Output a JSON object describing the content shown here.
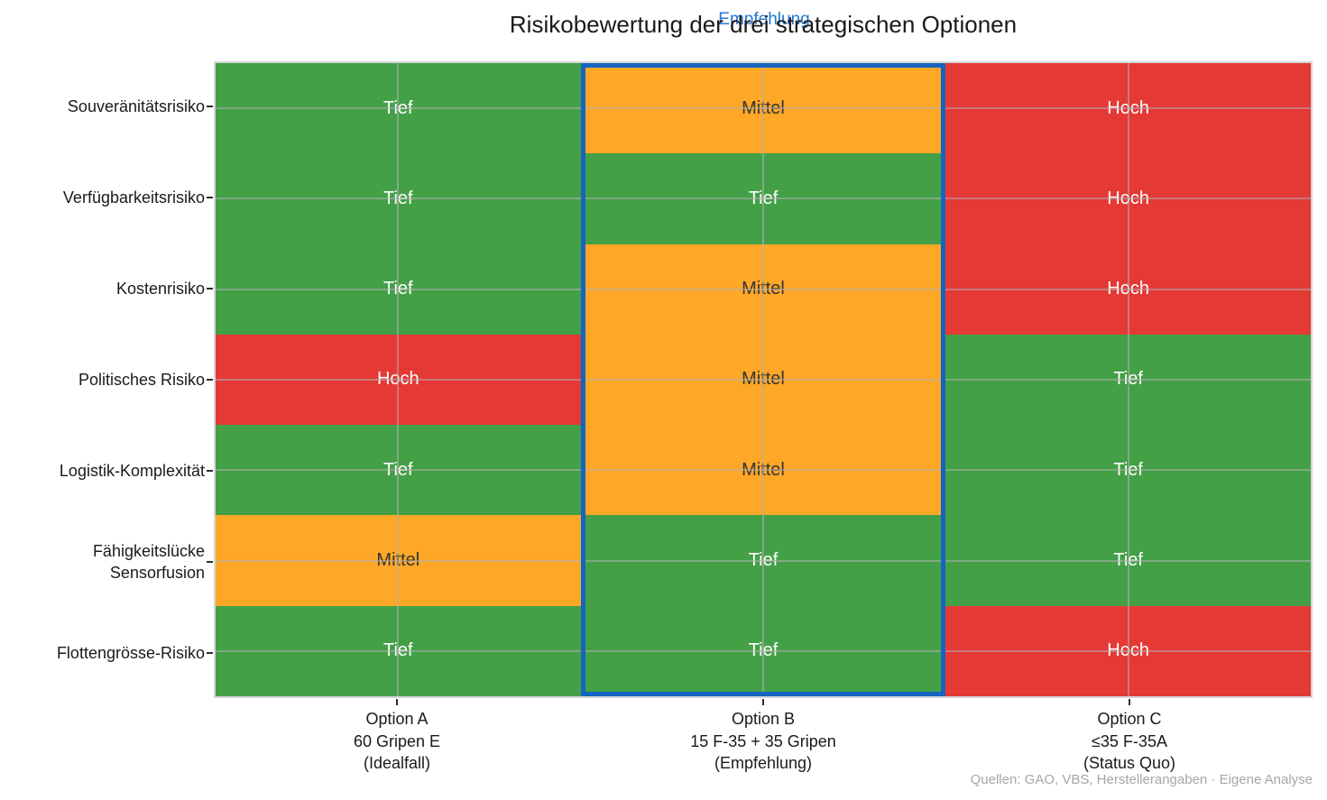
{
  "title": "Risikobewertung der drei strategischen Optionen",
  "annotation": {
    "label": "Empfehlung",
    "color": "#2478d2"
  },
  "source": "Quellen: GAO, VBS, Herstellerangaben · Eigene Analyse",
  "chart_data": {
    "type": "heatmap",
    "rows": [
      "Souveränitätsrisiko",
      "Verfügbarkeitsrisiko",
      "Kostenrisiko",
      "Politisches Risiko",
      "Logistik-Komplexität",
      "Fähigkeitslücke\nSensorfusion",
      "Flottengrösse-Risiko"
    ],
    "columns": [
      [
        "Option A",
        "60 Gripen E",
        "(Idealfall)"
      ],
      [
        "Option B",
        "15 F-35 + 35 Gripen",
        "(Empfehlung)"
      ],
      [
        "Option C",
        "≤35 F-35A",
        "(Status Quo)"
      ]
    ],
    "cells": [
      [
        "Tief",
        "Mittel",
        "Hoch"
      ],
      [
        "Tief",
        "Tief",
        "Hoch"
      ],
      [
        "Tief",
        "Mittel",
        "Hoch"
      ],
      [
        "Hoch",
        "Mittel",
        "Tief"
      ],
      [
        "Tief",
        "Mittel",
        "Tief"
      ],
      [
        "Mittel",
        "Tief",
        "Tief"
      ],
      [
        "Tief",
        "Tief",
        "Hoch"
      ]
    ],
    "value_colors": {
      "Tief": "#43A047",
      "Mittel": "#FFA726",
      "Hoch": "#E53935"
    },
    "value_text_colors": {
      "Tief": "#ffffff",
      "Mittel": "#333333",
      "Hoch": "#ffffff"
    },
    "value_levels": {
      "Tief": "low",
      "Mittel": "medium",
      "Hoch": "high"
    },
    "highlighted_column": 1,
    "highlight_border_color": "#1565C0",
    "grid": true,
    "legend_position": "none"
  }
}
